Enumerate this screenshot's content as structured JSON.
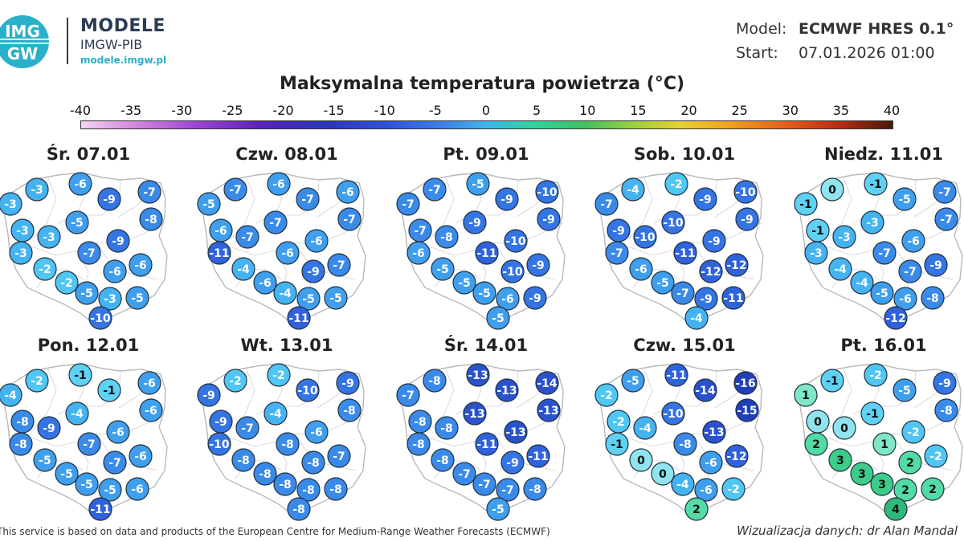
{
  "brand": {
    "logo_text": "IMGW",
    "title": "MODELE",
    "subtitle": "IMGW-PIB",
    "url": "modele.imgw.pl"
  },
  "meta": {
    "model_label": "Model:",
    "model_value": "ECMWF HRES 0.1°",
    "start_label": "Start:",
    "start_value": "07.01.2026 01:00"
  },
  "title": "Maksymalna temperatura powietrza (°C)",
  "scale": {
    "ticks": [
      "-40",
      "-35",
      "-30",
      "-25",
      "-20",
      "-15",
      "-10",
      "-5",
      "0",
      "5",
      "10",
      "15",
      "20",
      "25",
      "30",
      "35",
      "40"
    ],
    "min": -40,
    "max": 40
  },
  "colors": {
    "frame": "#2b3c55",
    "accent": "#2ab0c8",
    "marker_stroke": "#20303f"
  },
  "days": [
    {
      "label": "Śr. 07.01",
      "values": [
        -3,
        -3,
        -6,
        -9,
        -7,
        -5,
        -8,
        -3,
        -3,
        -9,
        -3,
        -7,
        -6,
        -6,
        -2,
        -2,
        -5,
        -3,
        -5,
        -10
      ]
    },
    {
      "label": "Czw. 08.01",
      "values": [
        -7,
        -5,
        -6,
        -7,
        -6,
        -7,
        -7,
        -6,
        -7,
        -6,
        -11,
        -6,
        -9,
        -7,
        -4,
        -6,
        -4,
        -5,
        -5,
        -11
      ]
    },
    {
      "label": "Pt. 09.01",
      "values": [
        -7,
        -7,
        -5,
        -9,
        -10,
        -9,
        -9,
        -7,
        -8,
        -10,
        -6,
        -11,
        -10,
        -9,
        -5,
        -5,
        -5,
        -6,
        -9,
        -5
      ]
    },
    {
      "label": "Sob. 10.01",
      "values": [
        -4,
        -7,
        -2,
        -9,
        -10,
        -10,
        -9,
        -9,
        -10,
        -9,
        -7,
        -11,
        -12,
        -12,
        -6,
        -5,
        -7,
        -9,
        -11,
        -4
      ]
    },
    {
      "label": "Niedz. 11.01",
      "values": [
        0,
        -1,
        -1,
        -5,
        -7,
        -3,
        -7,
        -1,
        -3,
        -6,
        -3,
        -7,
        -7,
        -9,
        -4,
        -4,
        -5,
        -6,
        -8,
        -12
      ]
    },
    {
      "label": "Pon. 12.01",
      "values": [
        -2,
        -4,
        -1,
        -1,
        -6,
        -4,
        -6,
        -8,
        -9,
        -6,
        -8,
        -7,
        -7,
        -6,
        -5,
        -5,
        -5,
        -5,
        -6,
        -11
      ]
    },
    {
      "label": "Wt. 13.01",
      "values": [
        -2,
        -9,
        -2,
        -10,
        -9,
        -4,
        -8,
        -9,
        -7,
        -6,
        -10,
        -8,
        -8,
        -7,
        -8,
        -8,
        -8,
        -8,
        -8,
        -8
      ]
    },
    {
      "label": "Śr. 14.01",
      "values": [
        -8,
        -7,
        -13,
        -13,
        -14,
        -13,
        -13,
        -8,
        -8,
        -13,
        -8,
        -11,
        -9,
        -11,
        -8,
        -7,
        -7,
        -7,
        -8,
        -5
      ]
    },
    {
      "label": "Czw. 15.01",
      "values": [
        -5,
        -2,
        -11,
        -14,
        -16,
        -10,
        -15,
        -2,
        -4,
        -13,
        -1,
        -8,
        -6,
        -12,
        0,
        0,
        -4,
        -6,
        -2,
        2
      ]
    },
    {
      "label": "Pt. 16.01",
      "values": [
        -1,
        1,
        -2,
        -5,
        -9,
        -1,
        -8,
        0,
        0,
        -2,
        2,
        1,
        2,
        -2,
        3,
        3,
        3,
        2,
        2,
        4
      ]
    }
  ],
  "footer": {
    "left": "This service is based on data and products of the European Centre for Medium-Range Weather Forecasts (ECMWF)",
    "right": "Wizualizacja danych: dr Alan Mandal"
  }
}
